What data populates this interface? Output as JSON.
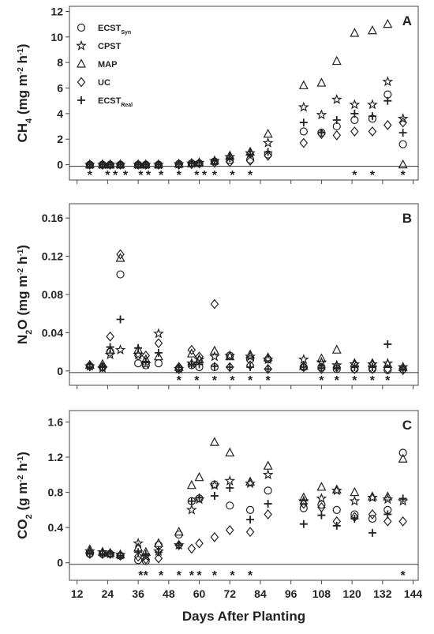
{
  "x_axis": {
    "label": "Days After Planting",
    "xlim": [
      9,
      146
    ],
    "xticks": [
      12,
      24,
      36,
      48,
      60,
      72,
      84,
      96,
      108,
      120,
      132,
      144
    ]
  },
  "chart_data": [
    {
      "type": "scatter",
      "panel_label": "A",
      "y_label": [
        {
          "text": "CH"
        },
        {
          "text": "4",
          "style": "sub"
        },
        {
          "text": " (mg m"
        },
        {
          "text": "-2",
          "style": "sup"
        },
        {
          "text": " h"
        },
        {
          "text": "-1",
          "style": "sup"
        },
        {
          "text": ")"
        }
      ],
      "ylim": [
        -1.2,
        12.4
      ],
      "yticks": [
        0,
        2,
        4,
        6,
        8,
        10,
        12
      ],
      "x": [
        17,
        22,
        25,
        29,
        36,
        39,
        44,
        52,
        57,
        60,
        66,
        72,
        80,
        87,
        101,
        108,
        114,
        121,
        128,
        134,
        140
      ],
      "series": [
        {
          "name": "ECST",
          "subscript": "Syn",
          "marker": "circle",
          "values": [
            0,
            0,
            0,
            0,
            0,
            0,
            0,
            0.05,
            0.1,
            0.1,
            0.25,
            0.35,
            0.4,
            0.8,
            2.6,
            2.5,
            3.0,
            3.5,
            3.6,
            5.5,
            1.6
          ]
        },
        {
          "name": "CPST",
          "marker": "star",
          "values": [
            0,
            0,
            0,
            0,
            0,
            0,
            0,
            0.05,
            0.1,
            0.15,
            0.3,
            0.6,
            0.9,
            1.7,
            4.5,
            3.9,
            5.1,
            4.7,
            4.7,
            6.5,
            3.6
          ]
        },
        {
          "name": "MAP",
          "marker": "triangle",
          "values": [
            0,
            0,
            0,
            0,
            0,
            0,
            0,
            0.05,
            0.1,
            0.15,
            0.3,
            0.7,
            1.0,
            2.4,
            6.2,
            6.4,
            8.1,
            10.3,
            10.5,
            11.0,
            0.0
          ]
        },
        {
          "name": "UC",
          "marker": "diamond",
          "values": [
            0,
            0,
            0,
            0,
            0,
            0,
            0,
            0,
            0.05,
            0.1,
            0.15,
            0.2,
            0.3,
            0.7,
            1.7,
            2.4,
            2.3,
            2.6,
            2.6,
            3.1,
            3.3
          ]
        },
        {
          "name": "ECST",
          "subscript": "Real",
          "marker": "plus",
          "values": [
            0,
            0,
            0,
            0,
            0,
            0,
            0,
            0.05,
            0.1,
            0.15,
            0.3,
            0.5,
            0.8,
            1.0,
            3.3,
            2.5,
            3.5,
            4.0,
            3.8,
            5.0,
            2.5
          ]
        }
      ],
      "significance_marker": "*",
      "significant_days": [
        17,
        24,
        27,
        31,
        37,
        40,
        45,
        52,
        59,
        62,
        66,
        73,
        80,
        121,
        128,
        140
      ]
    },
    {
      "type": "scatter",
      "panel_label": "B",
      "y_label": [
        {
          "text": "N"
        },
        {
          "text": "2",
          "style": "sub"
        },
        {
          "text": "O (mg m"
        },
        {
          "text": "-2",
          "style": "sup"
        },
        {
          "text": " h"
        },
        {
          "text": "-1",
          "style": "sup"
        },
        {
          "text": ")"
        }
      ],
      "ylim": [
        -0.015,
        0.175
      ],
      "yticks": [
        0,
        0.04,
        0.08,
        0.12,
        0.16
      ],
      "x": [
        17,
        22,
        25,
        29,
        36,
        39,
        44,
        52,
        57,
        60,
        66,
        72,
        80,
        87,
        101,
        108,
        114,
        121,
        128,
        134,
        140
      ],
      "series": [
        {
          "marker": "circle",
          "values": [
            0.005,
            0.004,
            0.02,
            0.101,
            0.008,
            0.006,
            0.008,
            0.002,
            0.006,
            0.004,
            0.004,
            0.016,
            0.012,
            0.012,
            0.004,
            0.004,
            0.002,
            0.002,
            0.002,
            0.001,
            0.002
          ]
        },
        {
          "marker": "star",
          "values": [
            0.005,
            0.003,
            0.017,
            0.022,
            0.017,
            0.007,
            0.039,
            0.002,
            0.008,
            0.012,
            0.015,
            0.016,
            0.015,
            0.012,
            0.012,
            0.009,
            0.006,
            0.007,
            0.007,
            0.008,
            0.004
          ]
        },
        {
          "marker": "triangle",
          "values": [
            0.006,
            0.007,
            0.022,
            0.118,
            0.022,
            0.012,
            0.015,
            0.004,
            0.018,
            0.012,
            0.021,
            0.015,
            0.017,
            0.014,
            0.005,
            0.013,
            0.022,
            0.008,
            0.008,
            0.007,
            0.004
          ]
        },
        {
          "marker": "diamond",
          "values": [
            0.006,
            0.004,
            0.036,
            0.122,
            0.016,
            0.016,
            0.029,
            0.004,
            0.022,
            0.015,
            0.07,
            0.004,
            0.006,
            0.002,
            0.004,
            0.002,
            0.004,
            0.002,
            0.002,
            0.002,
            0.001
          ]
        },
        {
          "marker": "plus",
          "values": [
            0.004,
            0.005,
            0.025,
            0.054,
            0.024,
            0.01,
            0.019,
            0.001,
            0.007,
            0.007,
            0.005,
            0.004,
            0.004,
            0.002,
            0.004,
            0.003,
            0.003,
            0.004,
            0.004,
            0.028,
            0.002
          ]
        }
      ],
      "significance_marker": "*",
      "significant_days": [
        52,
        59,
        66,
        73,
        80,
        87,
        108,
        114,
        121,
        128,
        134
      ]
    },
    {
      "type": "scatter",
      "panel_label": "C",
      "y_label": [
        {
          "text": "CO"
        },
        {
          "text": "2",
          "style": "sub"
        },
        {
          "text": " (g m"
        },
        {
          "text": "-2",
          "style": "sup"
        },
        {
          "text": " h"
        },
        {
          "text": "-1",
          "style": "sup"
        },
        {
          "text": ")"
        }
      ],
      "ylim": [
        -0.2,
        1.73
      ],
      "yticks": [
        0,
        0.4,
        0.8,
        1.2,
        1.6
      ],
      "x": [
        17,
        22,
        25,
        29,
        36,
        39,
        44,
        52,
        57,
        60,
        66,
        72,
        80,
        87,
        101,
        108,
        114,
        121,
        128,
        134,
        140
      ],
      "series": [
        {
          "marker": "circle",
          "values": [
            0.1,
            0.1,
            0.1,
            0.08,
            0.03,
            0.02,
            0.2,
            0.32,
            0.7,
            0.73,
            0.89,
            0.65,
            0.6,
            0.82,
            0.62,
            0.66,
            0.6,
            0.55,
            0.5,
            0.6,
            1.25
          ]
        },
        {
          "marker": "star",
          "values": [
            0.13,
            0.12,
            0.1,
            0.09,
            0.22,
            0.07,
            0.13,
            0.2,
            0.6,
            0.72,
            0.88,
            0.93,
            0.9,
            1.0,
            0.7,
            0.73,
            0.82,
            0.7,
            0.74,
            0.72,
            0.7
          ]
        },
        {
          "marker": "triangle",
          "values": [
            0.15,
            0.12,
            0.11,
            0.09,
            0.17,
            0.12,
            0.22,
            0.35,
            0.88,
            0.97,
            1.37,
            1.25,
            0.92,
            1.1,
            0.74,
            0.86,
            0.83,
            0.8,
            0.75,
            0.75,
            1.18
          ]
        },
        {
          "marker": "diamond",
          "values": [
            0.1,
            0.1,
            0.1,
            0.08,
            0.07,
            0.04,
            0.05,
            0.2,
            0.16,
            0.22,
            0.29,
            0.37,
            0.35,
            0.55,
            0.67,
            0.63,
            0.47,
            0.52,
            0.55,
            0.47,
            0.47
          ]
        },
        {
          "marker": "plus",
          "values": [
            0.1,
            0.1,
            0.1,
            0.08,
            0.12,
            0.1,
            0.12,
            0.2,
            0.7,
            0.74,
            0.76,
            0.85,
            0.49,
            0.67,
            0.44,
            0.54,
            0.42,
            0.5,
            0.34,
            0.55,
            0.73
          ]
        }
      ],
      "significance_marker": "*",
      "significant_days": [
        37,
        39,
        45,
        52,
        57,
        60,
        66,
        73,
        80,
        140
      ]
    }
  ]
}
